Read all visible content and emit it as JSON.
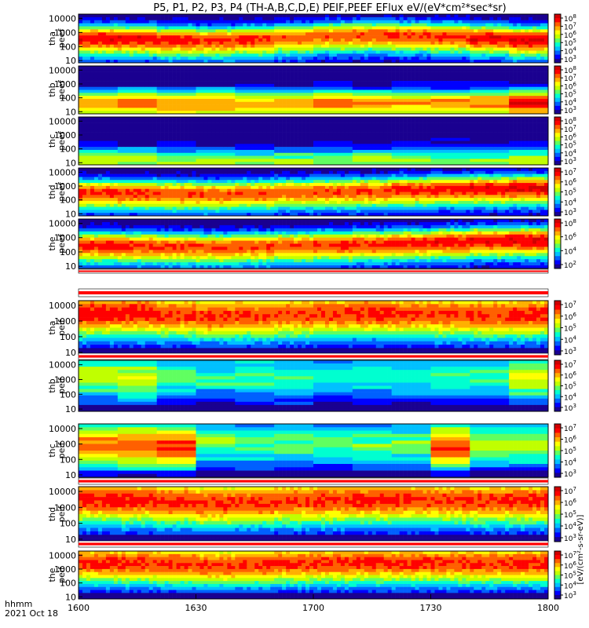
{
  "title": "P5, P1, P2, P3, P4 (TH-A,B,C,D,E) PEIF,PEEF EFlux eV/(eV*cm²*sec*sr)",
  "footer": {
    "time_format": "hhmm",
    "date": "2021 Oct 18"
  },
  "colorbar_label": "[eV/(cm²-s-sr-eV)]",
  "colors": {
    "scale": [
      "#1a0090",
      "#0000ff",
      "#0060ff",
      "#00c0ff",
      "#00ffd0",
      "#60ff60",
      "#c0ff00",
      "#ffff00",
      "#ffb000",
      "#ff6000",
      "#ff0000",
      "#d00000"
    ],
    "fill_bar": "#ff0000"
  },
  "chart_data": {
    "type": "heatmap",
    "xlabel": "",
    "x_ticks": [
      "1600",
      "1630",
      "1700",
      "1730",
      "1800"
    ],
    "x_tick_values": [
      0,
      30,
      60,
      90,
      120
    ],
    "xlim": [
      0,
      120
    ],
    "y_scale": "log",
    "ylim": [
      7,
      20000
    ],
    "panels": [
      {
        "label_top": "tha",
        "label_bottom": "peef",
        "y_ticks": [
          "10000",
          "1000",
          "100",
          "10"
        ],
        "y_tick_values": [
          10000,
          1000,
          100,
          10
        ],
        "colorbar_ticks": [
          {
            "mantissa": "10",
            "exp": "8"
          },
          {
            "mantissa": "10",
            "exp": "7"
          },
          {
            "mantissa": "10",
            "exp": "6"
          },
          {
            "mantissa": "10",
            "exp": "5"
          },
          {
            "mantissa": "10",
            "exp": "4"
          },
          {
            "mantissa": "10",
            "exp": "3"
          }
        ],
        "pattern": "electron",
        "peak_energy": [
          400,
          380,
          300,
          280,
          330,
          450,
          600,
          700,
          650,
          550,
          420,
          320
        ],
        "intensity": [
          0.9,
          0.9,
          0.88,
          0.85,
          0.85,
          0.8,
          0.8,
          0.82,
          0.85,
          0.85,
          0.9,
          0.92
        ]
      },
      {
        "label_top": "thb",
        "label_bottom": "peef",
        "y_ticks": [
          "10000",
          "1000",
          "100",
          "10"
        ],
        "y_tick_values": [
          10000,
          1000,
          100,
          10
        ],
        "colorbar_ticks": [
          {
            "mantissa": "10",
            "exp": "8"
          },
          {
            "mantissa": "10",
            "exp": "7"
          },
          {
            "mantissa": "10",
            "exp": "6"
          },
          {
            "mantissa": "10",
            "exp": "5"
          },
          {
            "mantissa": "10",
            "exp": "4"
          },
          {
            "mantissa": "10",
            "exp": "3"
          }
        ],
        "pattern": "blocky_electron",
        "peak_energy": [
          40,
          50,
          40,
          45,
          40,
          50,
          45,
          40,
          40,
          45,
          50,
          45
        ],
        "intensity": [
          0.75,
          0.78,
          0.72,
          0.74,
          0.7,
          0.73,
          0.76,
          0.74,
          0.72,
          0.74,
          0.75,
          0.9
        ]
      },
      {
        "label_top": "thc",
        "label_bottom": "peef",
        "y_ticks": [
          "10000",
          "1000",
          "100",
          "10"
        ],
        "y_tick_values": [
          10000,
          1000,
          100,
          10
        ],
        "colorbar_ticks": [
          {
            "mantissa": "10",
            "exp": "8"
          },
          {
            "mantissa": "10",
            "exp": "7"
          },
          {
            "mantissa": "10",
            "exp": "6"
          },
          {
            "mantissa": "10",
            "exp": "5"
          },
          {
            "mantissa": "10",
            "exp": "4"
          },
          {
            "mantissa": "10",
            "exp": "3"
          }
        ],
        "pattern": "blocky_electron",
        "peak_energy": [
          15,
          15,
          15,
          14,
          14,
          14,
          15,
          15,
          15,
          15,
          14,
          14
        ],
        "intensity": [
          0.55,
          0.52,
          0.5,
          0.5,
          0.5,
          0.48,
          0.5,
          0.52,
          0.5,
          0.5,
          0.5,
          0.5
        ]
      },
      {
        "label_top": "thd",
        "label_bottom": "peef",
        "y_ticks": [
          "10000",
          "1000",
          "100",
          "10"
        ],
        "y_tick_values": [
          10000,
          1000,
          100,
          10
        ],
        "colorbar_ticks": [
          {
            "mantissa": "10",
            "exp": "7"
          },
          {
            "mantissa": "10",
            "exp": "6"
          },
          {
            "mantissa": "10",
            "exp": "5"
          },
          {
            "mantissa": "10",
            "exp": "4"
          },
          {
            "mantissa": "10",
            "exp": "3"
          }
        ],
        "pattern": "electron",
        "peak_energy": [
          350,
          330,
          300,
          280,
          320,
          380,
          420,
          450,
          550,
          650,
          700,
          750
        ],
        "intensity": [
          0.85,
          0.85,
          0.83,
          0.82,
          0.82,
          0.8,
          0.82,
          0.84,
          0.86,
          0.88,
          0.9,
          0.92
        ]
      },
      {
        "label_top": "the",
        "label_bottom": "peef",
        "y_ticks": [
          "10000",
          "1000",
          "100",
          "10"
        ],
        "y_tick_values": [
          10000,
          1000,
          100,
          10
        ],
        "colorbar_ticks": [
          {
            "mantissa": "10",
            "exp": "8"
          },
          {
            "mantissa": "10",
            "exp": "6"
          },
          {
            "mantissa": "10",
            "exp": "4"
          },
          {
            "mantissa": "10",
            "exp": "2"
          }
        ],
        "pattern": "electron",
        "peak_energy": [
          300,
          280,
          250,
          230,
          260,
          300,
          330,
          380,
          450,
          550,
          650,
          700
        ],
        "intensity": [
          0.86,
          0.86,
          0.84,
          0.82,
          0.83,
          0.82,
          0.84,
          0.85,
          0.87,
          0.89,
          0.9,
          0.92
        ]
      },
      {
        "label_top": "tha",
        "label_bottom": "peif",
        "y_ticks": [
          "10000",
          "1000",
          "100",
          "10"
        ],
        "y_tick_values": [
          10000,
          1000,
          100,
          10
        ],
        "colorbar_ticks": [
          {
            "mantissa": "10",
            "exp": "7"
          },
          {
            "mantissa": "10",
            "exp": "6"
          },
          {
            "mantissa": "10",
            "exp": "5"
          },
          {
            "mantissa": "10",
            "exp": "4"
          },
          {
            "mantissa": "10",
            "exp": "3"
          }
        ],
        "pattern": "ion",
        "peak_energy": [
          3000,
          3200,
          2500,
          2000,
          2200,
          2600,
          3000,
          3200,
          3000,
          2600,
          2400,
          2500
        ],
        "intensity": [
          0.88,
          0.88,
          0.85,
          0.84,
          0.84,
          0.83,
          0.85,
          0.86,
          0.84,
          0.83,
          0.84,
          0.86
        ]
      },
      {
        "label_top": "thb",
        "label_bottom": "peif",
        "y_ticks": [
          "10000",
          "1000",
          "100",
          "10"
        ],
        "y_tick_values": [
          10000,
          1000,
          100,
          10
        ],
        "colorbar_ticks": [
          {
            "mantissa": "10",
            "exp": "7"
          },
          {
            "mantissa": "10",
            "exp": "6"
          },
          {
            "mantissa": "10",
            "exp": "5"
          },
          {
            "mantissa": "10",
            "exp": "4"
          },
          {
            "mantissa": "10",
            "exp": "3"
          }
        ],
        "pattern": "blocky_ion",
        "peak_energy": [
          1500,
          1200,
          1800,
          1400,
          1600,
          1300,
          1500,
          1700,
          1400,
          1600,
          1500,
          1300
        ],
        "intensity": [
          0.55,
          0.58,
          0.45,
          0.4,
          0.42,
          0.38,
          0.4,
          0.42,
          0.38,
          0.4,
          0.45,
          0.6
        ]
      },
      {
        "label_top": "thc",
        "label_bottom": "peif",
        "y_ticks": [
          "10000",
          "1000",
          "100",
          "10"
        ],
        "y_tick_values": [
          10000,
          1000,
          100,
          10
        ],
        "colorbar_ticks": [
          {
            "mantissa": "10",
            "exp": "7"
          },
          {
            "mantissa": "10",
            "exp": "6"
          },
          {
            "mantissa": "10",
            "exp": "5"
          },
          {
            "mantissa": "10",
            "exp": "4"
          },
          {
            "mantissa": "10",
            "exp": "3"
          }
        ],
        "pattern": "blocky_ion",
        "peak_energy": [
          800,
          700,
          600,
          1200,
          900,
          1000,
          1100,
          900,
          1000,
          700,
          900,
          1000
        ],
        "intensity": [
          0.78,
          0.8,
          0.82,
          0.5,
          0.46,
          0.45,
          0.46,
          0.47,
          0.45,
          0.82,
          0.5,
          0.5
        ]
      },
      {
        "label_top": "thd",
        "label_bottom": "peif",
        "y_ticks": [
          "10000",
          "1000",
          "100",
          "10"
        ],
        "y_tick_values": [
          10000,
          1000,
          100,
          10
        ],
        "colorbar_ticks": [
          {
            "mantissa": "10",
            "exp": "7"
          },
          {
            "mantissa": "10",
            "exp": "6"
          },
          {
            "mantissa": "10",
            "exp": "5"
          },
          {
            "mantissa": "10",
            "exp": "4"
          },
          {
            "mantissa": "10",
            "exp": "3"
          }
        ],
        "pattern": "ion",
        "peak_energy": [
          3000,
          2800,
          2200,
          1800,
          2000,
          2400,
          2800,
          3000,
          3000,
          2800,
          2600,
          2600
        ],
        "intensity": [
          0.87,
          0.87,
          0.85,
          0.84,
          0.84,
          0.84,
          0.85,
          0.86,
          0.85,
          0.84,
          0.84,
          0.86
        ]
      },
      {
        "label_top": "the",
        "label_bottom": "peif",
        "y_ticks": [
          "10000",
          "1000",
          "100",
          "10"
        ],
        "y_tick_values": [
          10000,
          1000,
          100,
          10
        ],
        "colorbar_ticks": [
          {
            "mantissa": "10",
            "exp": "7"
          },
          {
            "mantissa": "10",
            "exp": "6"
          },
          {
            "mantissa": "10",
            "exp": "5"
          },
          {
            "mantissa": "10",
            "exp": "4"
          },
          {
            "mantissa": "10",
            "exp": "3"
          }
        ],
        "pattern": "ion",
        "peak_energy": [
          2800,
          2600,
          2200,
          1900,
          2100,
          2400,
          2700,
          2900,
          2800,
          2600,
          2500,
          2600
        ],
        "intensity": [
          0.86,
          0.86,
          0.85,
          0.84,
          0.84,
          0.84,
          0.85,
          0.86,
          0.85,
          0.84,
          0.84,
          0.86
        ]
      }
    ]
  }
}
